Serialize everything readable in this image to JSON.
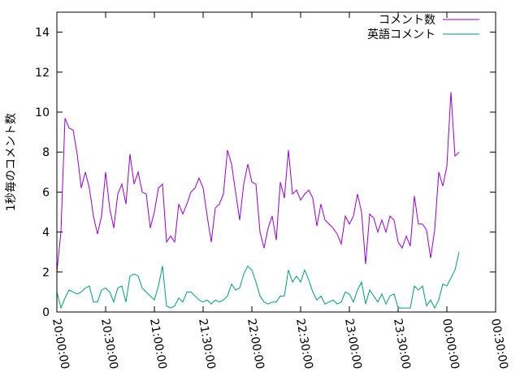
{
  "chart_data": {
    "type": "line",
    "title": "",
    "xlabel": "",
    "ylabel": "1秒毎のコメント数",
    "ylim": [
      0,
      15
    ],
    "yticks": [
      0,
      2,
      4,
      6,
      8,
      10,
      12,
      14
    ],
    "xlim": [
      "20:00:00",
      "00:30:00"
    ],
    "xticks": [
      "20:00:00",
      "20:30:00",
      "21:00:00",
      "21:30:00",
      "22:00:00",
      "22:30:00",
      "23:00:00",
      "23:30:00",
      "00:00:00",
      "00:30:00"
    ],
    "grid": false,
    "legend_position": "top-right",
    "sample_interval_minutes": 2.5,
    "series": [
      {
        "name": "コメント数",
        "color": "#9400d3",
        "values": [
          2.0,
          4.0,
          9.7,
          9.2,
          9.1,
          7.9,
          6.2,
          7.0,
          6.2,
          4.8,
          3.9,
          4.8,
          7.0,
          5.2,
          4.2,
          5.9,
          6.4,
          5.4,
          7.9,
          6.4,
          7.0,
          6.0,
          5.9,
          4.2,
          5.0,
          6.2,
          6.4,
          3.5,
          3.8,
          3.5,
          5.4,
          4.9,
          5.4,
          6.0,
          6.2,
          6.7,
          6.2,
          4.8,
          3.5,
          5.2,
          5.4,
          5.9,
          8.1,
          7.4,
          6.0,
          4.6,
          6.4,
          7.4,
          6.5,
          6.4,
          4.0,
          3.2,
          4.2,
          4.8,
          3.6,
          6.5,
          5.7,
          8.1,
          5.9,
          6.1,
          5.6,
          5.9,
          6.1,
          5.7,
          4.3,
          5.4,
          4.6,
          4.4,
          4.2,
          3.9,
          3.4,
          4.8,
          4.4,
          4.8,
          5.9,
          5.0,
          2.4,
          4.9,
          4.7,
          4.0,
          4.6,
          4.0,
          4.8,
          4.6,
          3.5,
          3.2,
          3.8,
          3.3,
          5.8,
          4.4,
          4.4,
          4.1,
          2.7,
          4.1,
          7.0,
          6.3,
          7.3,
          11.0,
          7.8,
          8.0
        ]
      },
      {
        "name": "英語コメント",
        "color": "#009e73",
        "values": [
          1.0,
          0.2,
          0.7,
          1.1,
          1.0,
          0.9,
          1.0,
          1.2,
          1.3,
          0.5,
          0.5,
          1.1,
          1.2,
          1.0,
          0.5,
          1.2,
          1.3,
          0.5,
          1.8,
          1.9,
          1.8,
          1.2,
          1.0,
          0.8,
          0.6,
          1.3,
          2.3,
          0.3,
          0.2,
          0.3,
          0.7,
          0.5,
          1.0,
          1.0,
          0.8,
          0.6,
          0.5,
          0.6,
          0.4,
          0.6,
          0.5,
          0.6,
          0.8,
          1.4,
          1.1,
          1.2,
          1.9,
          2.3,
          2.1,
          1.5,
          0.8,
          0.5,
          0.4,
          0.5,
          0.5,
          0.8,
          0.8,
          2.1,
          1.5,
          1.8,
          1.5,
          2.1,
          1.6,
          1.0,
          0.6,
          0.8,
          0.4,
          0.5,
          0.6,
          0.4,
          0.5,
          1.0,
          0.9,
          0.5,
          1.1,
          1.5,
          0.4,
          1.1,
          0.8,
          0.5,
          0.9,
          0.4,
          0.8,
          0.9,
          0.2,
          0.2,
          0.2,
          0.2,
          1.3,
          1.1,
          1.3,
          0.3,
          0.6,
          0.2,
          0.6,
          1.4,
          1.3,
          1.7,
          2.1,
          3.0
        ]
      }
    ]
  }
}
